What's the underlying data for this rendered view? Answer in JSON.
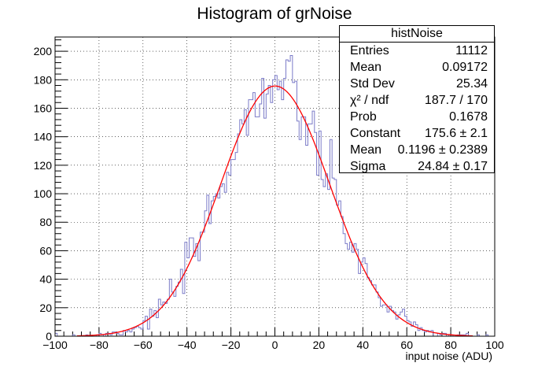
{
  "chart_data": {
    "type": "histogram",
    "title": "Histogram of grNoise",
    "xlabel": "input noise (ADU)",
    "ylabel": "",
    "xlim": [
      -100,
      100
    ],
    "ylim": [
      0,
      210
    ],
    "grid": true,
    "bin_width": 1,
    "x_ticks": [
      "−100",
      "−80",
      "−60",
      "−40",
      "−20",
      "0",
      "20",
      "40",
      "60",
      "80",
      "100"
    ],
    "y_ticks": [
      "0",
      "20",
      "40",
      "60",
      "80",
      "100",
      "120",
      "140",
      "160",
      "180",
      "200"
    ],
    "histogram_color": "#7b7bc8",
    "fit": {
      "name": "gaus",
      "color": "#ff0000",
      "constant": 175.6,
      "mean": 0.1196,
      "sigma": 24.84
    },
    "stats": {
      "name": "histNoise",
      "rows": [
        {
          "label": "Entries",
          "value": "11112"
        },
        {
          "label": "Mean",
          "value": "0.09172"
        },
        {
          "label": "Std Dev",
          "value": "25.34"
        },
        {
          "label": "χ² / ndf",
          "value": "187.7 / 170"
        },
        {
          "label": "Prob",
          "value": "0.1678"
        },
        {
          "label": "Constant",
          "value": "175.6 ± 2.1"
        },
        {
          "label": "Mean",
          "value": "0.1196 ± 0.2389"
        },
        {
          "label": "Sigma",
          "value": "24.84 ± 0.17"
        }
      ]
    }
  }
}
